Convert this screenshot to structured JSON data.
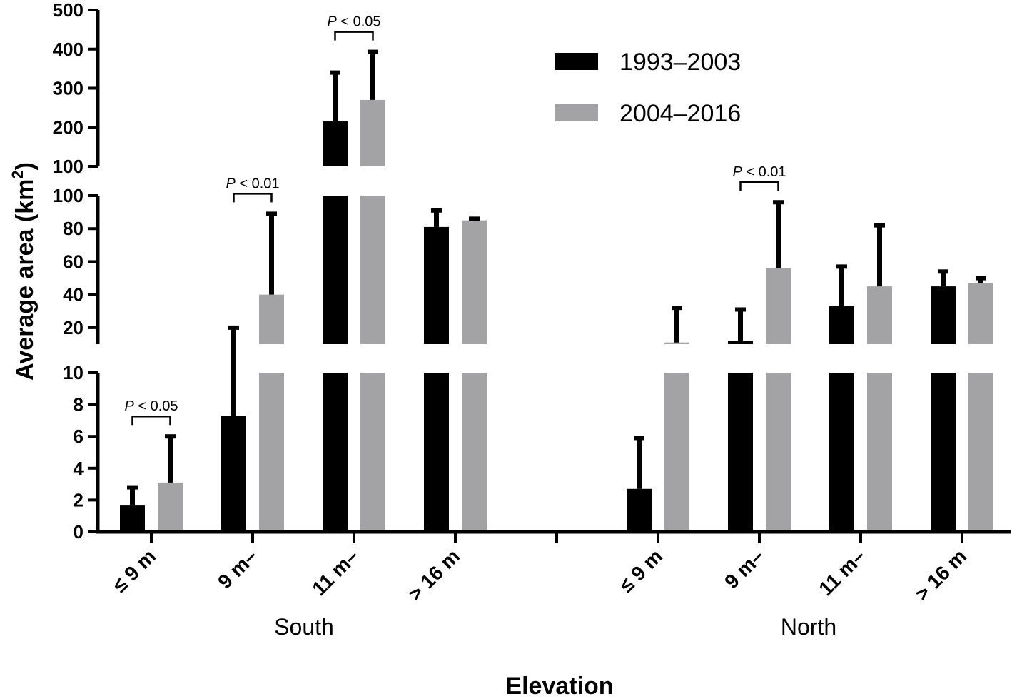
{
  "chart_data": {
    "type": "bar",
    "ylabel": "Average area (km",
    "ylabel_sup": "2",
    "ylabel_close": ")",
    "xlabel": "Elevation",
    "y_axis_segments": [
      {
        "range": [
          0,
          10
        ],
        "ticks": [
          "0",
          "2",
          "4",
          "6",
          "8",
          "10"
        ]
      },
      {
        "range": [
          10,
          100
        ],
        "ticks": [
          "20",
          "40",
          "60",
          "80",
          "100"
        ]
      },
      {
        "range": [
          100,
          500
        ],
        "ticks": [
          "100",
          "200",
          "300",
          "400",
          "500"
        ]
      }
    ],
    "groups": [
      {
        "name": "South",
        "categories": [
          "≤ 9 m",
          "9 m–",
          "11 m–",
          "> 16 m"
        ]
      },
      {
        "name": "North",
        "categories": [
          "≤ 9 m",
          "9 m–",
          "11 m–",
          "> 16 m"
        ]
      }
    ],
    "series": [
      {
        "name": "1993–2003",
        "color": "#000000",
        "values": [
          1.7,
          7.3,
          215,
          81,
          2.7,
          12,
          33,
          45
        ],
        "error_upper": [
          2.8,
          20,
          340,
          91,
          5.9,
          31,
          57,
          54
        ]
      },
      {
        "name": "2004–2016",
        "color": "#a3a3a6",
        "values": [
          3.1,
          40,
          270,
          85,
          11,
          56,
          45,
          47
        ],
        "error_upper": [
          6.0,
          89,
          393,
          86,
          32,
          96,
          82,
          50
        ]
      }
    ],
    "significance": [
      {
        "label_p": "P",
        "label_rest": " < 0.05",
        "category_index": 0
      },
      {
        "label_p": "P",
        "label_rest": " < 0.01",
        "category_index": 1
      },
      {
        "label_p": "P",
        "label_rest": " < 0.05",
        "category_index": 2
      },
      {
        "label_p": "P",
        "label_rest": " < 0.01",
        "category_index": 5
      }
    ],
    "legend_position": "top-right"
  }
}
